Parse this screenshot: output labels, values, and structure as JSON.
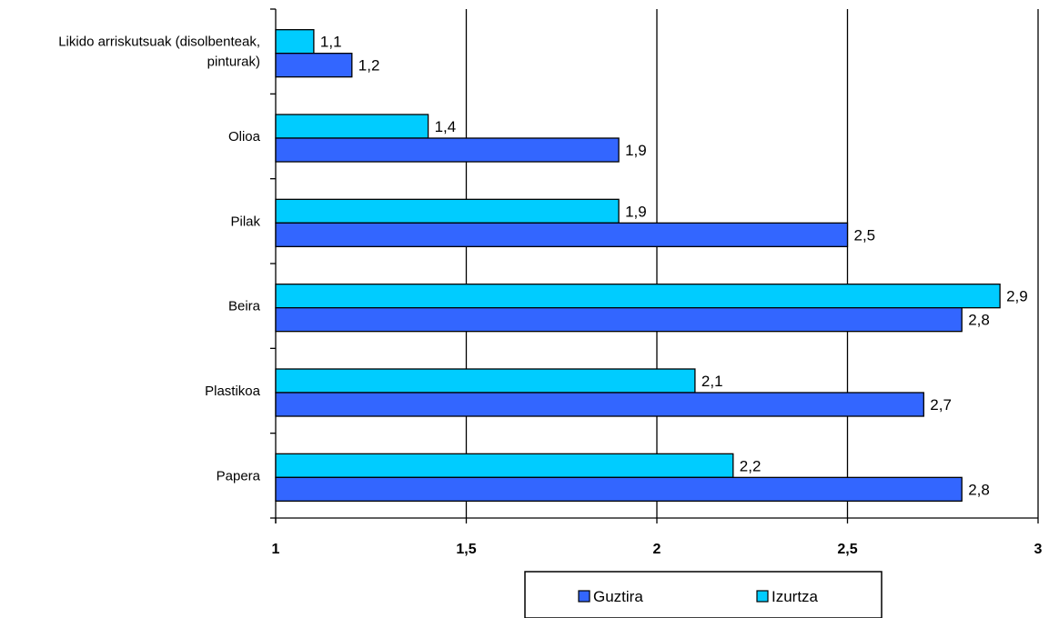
{
  "chart_data": {
    "type": "bar",
    "orientation": "horizontal",
    "categories": [
      "Likido arriskutsuak (disolbenteak, pinturak)",
      "Olioa",
      "Pilak",
      "Beira",
      "Plastikoa",
      "Papera"
    ],
    "category_lines": [
      [
        "Likido arriskutsuak (disolbenteak,",
        "pinturak)"
      ],
      [
        "Olioa"
      ],
      [
        "Pilak"
      ],
      [
        "Beira"
      ],
      [
        "Plastikoa"
      ],
      [
        "Papera"
      ]
    ],
    "series": [
      {
        "name": "Izurtza",
        "color": "#00ccff",
        "values": [
          1.1,
          1.4,
          1.9,
          2.9,
          2.1,
          2.2
        ],
        "labels": [
          "1,1",
          "1,4",
          "1,9",
          "2,9",
          "2,1",
          "2,2"
        ]
      },
      {
        "name": "Guztira",
        "color": "#3366ff",
        "values": [
          1.2,
          1.9,
          2.5,
          2.8,
          2.7,
          2.8
        ],
        "labels": [
          "1,2",
          "1,9",
          "2,5",
          "2,8",
          "2,7",
          "2,8"
        ]
      }
    ],
    "xlim": [
      1,
      3
    ],
    "xticks": [
      1,
      1.5,
      2,
      2.5,
      3
    ],
    "xtick_labels": [
      "1",
      "1,5",
      "2",
      "2,5",
      "3"
    ],
    "grid": true,
    "legend_position": "bottom",
    "legend_order": [
      "Guztira",
      "Izurtza"
    ],
    "title": "",
    "xlabel": "",
    "ylabel": ""
  }
}
